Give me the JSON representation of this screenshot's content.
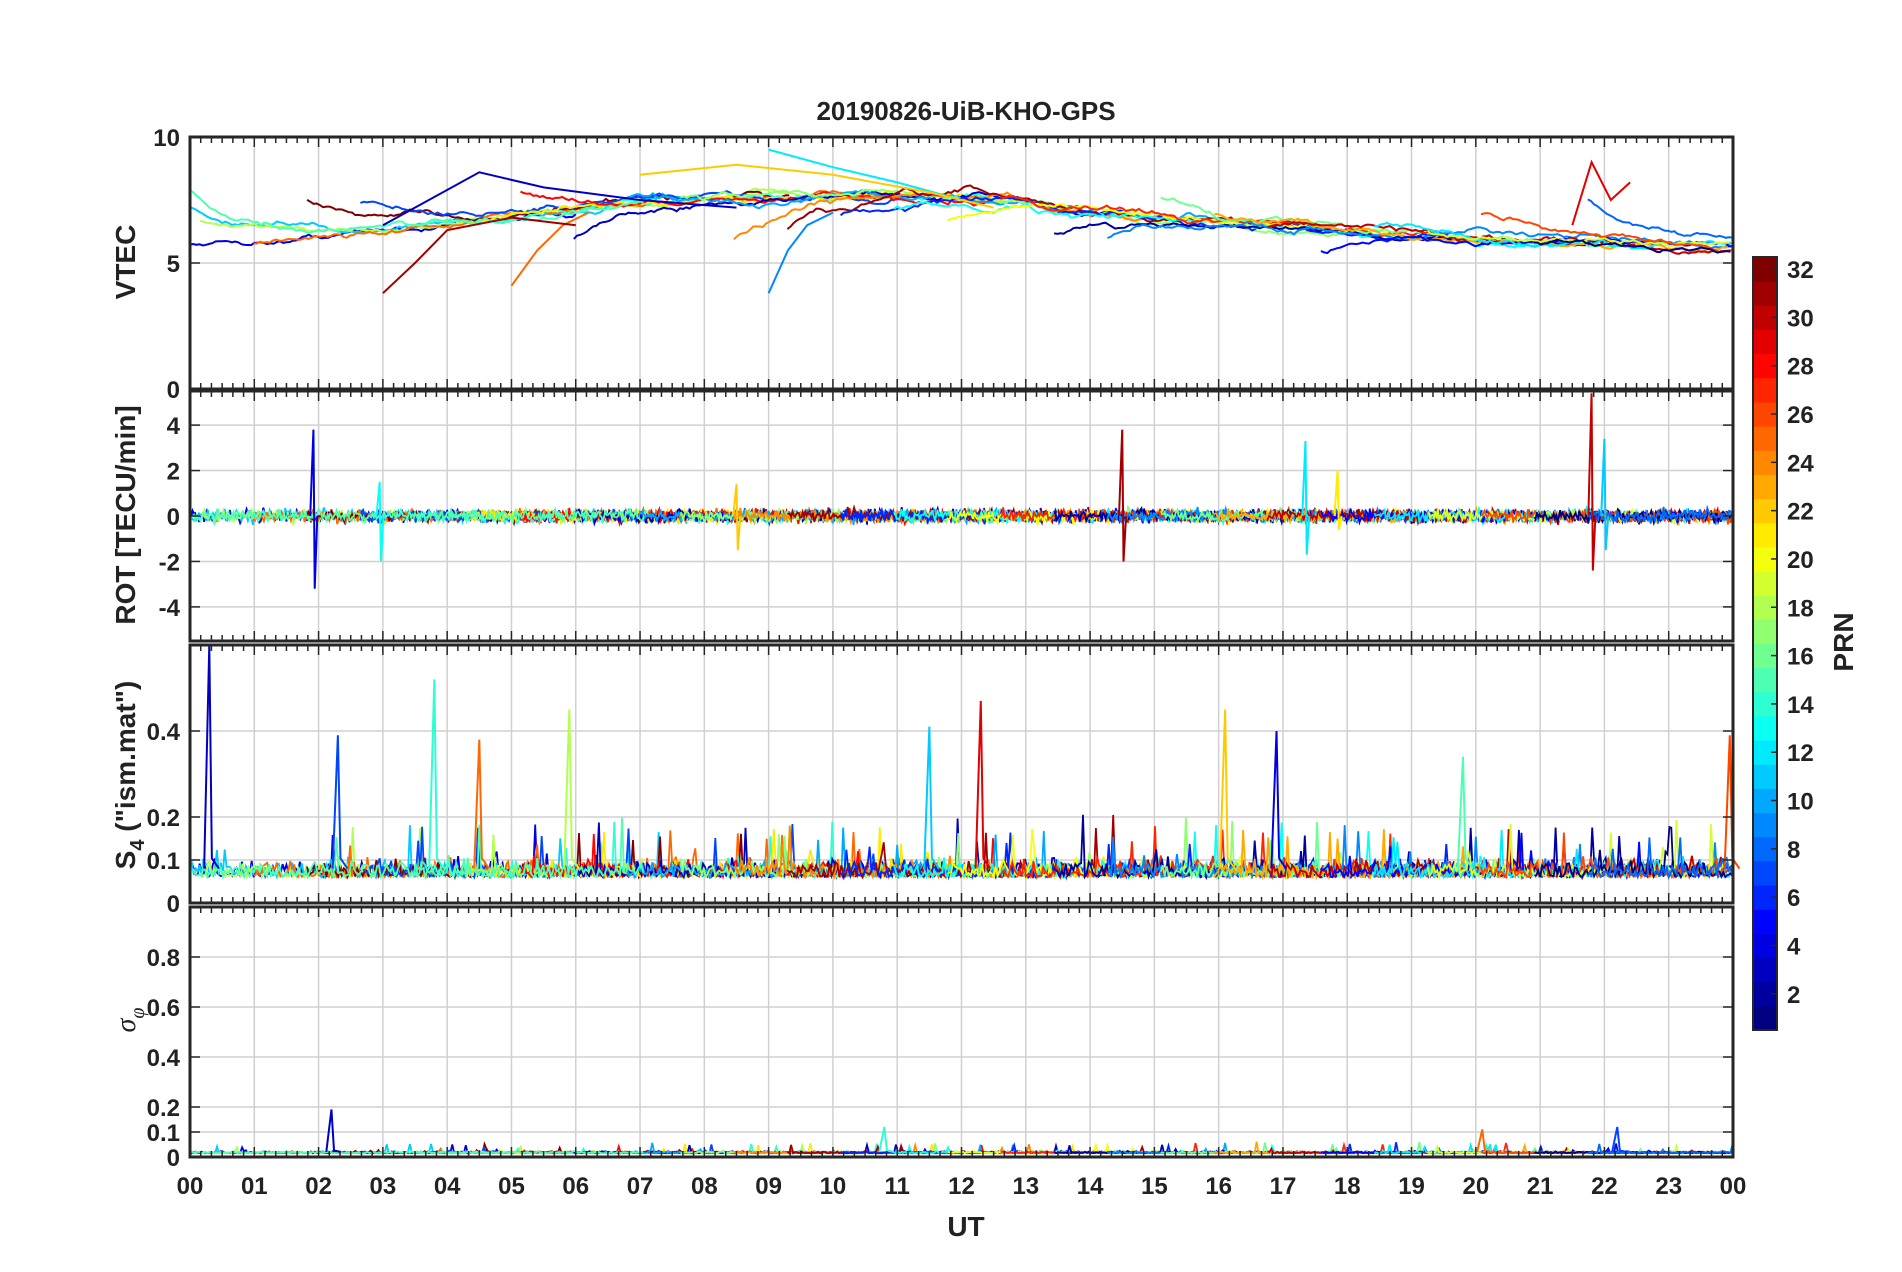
{
  "chart_data": {
    "type": "line",
    "title": "20190826-UiB-KHO-GPS",
    "xlabel": "UT",
    "x_ticks": [
      "00",
      "01",
      "02",
      "03",
      "04",
      "05",
      "06",
      "07",
      "08",
      "09",
      "10",
      "11",
      "12",
      "13",
      "14",
      "15",
      "16",
      "17",
      "18",
      "19",
      "20",
      "21",
      "22",
      "23",
      "00"
    ],
    "xlim_hours": [
      0,
      24
    ],
    "grid": true,
    "panels": [
      {
        "ylabel": "VTEC",
        "ylim": [
          0,
          10
        ],
        "y_ticks": [
          0,
          5,
          10
        ],
        "y_tick_labels": [
          "0",
          "5",
          "10"
        ],
        "description": "Vertical TEC per satellite track, mostly 5-9 TECU",
        "series_summary": [
          {
            "prn": 3,
            "x": [
              3.0,
              4.5,
              5.5,
              7.0,
              8.5
            ],
            "y": [
              6.5,
              8.6,
              8.0,
              7.5,
              7.2
            ]
          },
          {
            "prn": 9,
            "x": [
              9.0,
              9.3,
              9.6,
              10.0
            ],
            "y": [
              3.8,
              5.5,
              6.5,
              7.0
            ]
          },
          {
            "prn": 12,
            "x": [
              9.0,
              10.0,
              11.0,
              12.0
            ],
            "y": [
              9.5,
              8.8,
              8.2,
              7.5
            ]
          },
          {
            "prn": 22,
            "x": [
              7.0,
              8.5,
              10.0,
              11.5,
              12.5
            ],
            "y": [
              8.5,
              8.9,
              8.5,
              7.8,
              7.2
            ]
          },
          {
            "prn": 25,
            "x": [
              5.0,
              5.4,
              5.8,
              6.2
            ],
            "y": [
              4.1,
              5.5,
              6.5,
              7.0
            ]
          },
          {
            "prn": 29,
            "x": [
              21.5,
              21.8,
              22.1,
              22.4
            ],
            "y": [
              6.5,
              9.0,
              7.5,
              8.2
            ]
          },
          {
            "prn": 31,
            "x": [
              3.0,
              3.5,
              4.0,
              5.0,
              6.0
            ],
            "y": [
              3.8,
              5.0,
              6.3,
              6.8,
              6.5
            ]
          }
        ]
      },
      {
        "ylabel": "ROT [TECU/min]",
        "ylim": [
          -5.5,
          5.5
        ],
        "y_ticks": [
          -4,
          -2,
          0,
          2,
          4
        ],
        "y_tick_labels": [
          "-4",
          "-2",
          "0",
          "2",
          "4"
        ],
        "description": "Rate of TEC near 0 with spikes",
        "spikes": [
          {
            "hour": 1.92,
            "min": -3.2,
            "max": 3.8
          },
          {
            "hour": 2.95,
            "min": -2.0,
            "max": 1.5
          },
          {
            "hour": 8.5,
            "min": -1.5,
            "max": 1.4
          },
          {
            "hour": 14.5,
            "min": -2.0,
            "max": 3.8
          },
          {
            "hour": 17.35,
            "min": -1.7,
            "max": 3.3
          },
          {
            "hour": 17.85,
            "min": -0.6,
            "max": 2.0
          },
          {
            "hour": 21.8,
            "min": -2.4,
            "max": 5.4
          },
          {
            "hour": 22.0,
            "min": -1.5,
            "max": 3.4
          }
        ]
      },
      {
        "ylabel_main": "S",
        "ylabel_sub": "4",
        "ylabel_rest": " (\"ism.mat\")",
        "ylim": [
          0,
          0.6
        ],
        "y_ticks": [
          0,
          0.1,
          0.2,
          0.4
        ],
        "y_tick_labels": [
          "0",
          "0.1",
          "0.2",
          "0.4"
        ],
        "description": "Amplitude scintillation index, baseline ~0.05-0.15 with peaks",
        "peaks": [
          {
            "hour": 0.3,
            "value": 0.6
          },
          {
            "hour": 3.8,
            "value": 0.52
          },
          {
            "hour": 4.5,
            "value": 0.38
          },
          {
            "hour": 2.3,
            "value": 0.39
          },
          {
            "hour": 5.9,
            "value": 0.45
          },
          {
            "hour": 12.3,
            "value": 0.47
          },
          {
            "hour": 11.5,
            "value": 0.41
          },
          {
            "hour": 16.1,
            "value": 0.45
          },
          {
            "hour": 16.9,
            "value": 0.4
          },
          {
            "hour": 19.8,
            "value": 0.34
          },
          {
            "hour": 23.95,
            "value": 0.39
          }
        ]
      },
      {
        "ylabel_main": "σ",
        "ylabel_sub": "φ",
        "ylim": [
          0,
          1
        ],
        "y_ticks": [
          0,
          0.1,
          0.2,
          0.4,
          0.6,
          0.8
        ],
        "y_tick_labels": [
          "0",
          "0.1",
          "0.2",
          "0.4",
          "0.6",
          "0.8"
        ],
        "description": "Phase scintillation index near 0",
        "peaks": [
          {
            "hour": 2.2,
            "value": 0.19
          },
          {
            "hour": 10.8,
            "value": 0.12
          },
          {
            "hour": 20.1,
            "value": 0.11
          },
          {
            "hour": 22.2,
            "value": 0.12
          }
        ]
      }
    ],
    "colorbar": {
      "label": "PRN",
      "range": [
        1,
        32
      ],
      "ticks": [
        2,
        4,
        6,
        8,
        10,
        12,
        14,
        16,
        18,
        20,
        22,
        24,
        26,
        28,
        30,
        32
      ],
      "colormap": "jet"
    }
  }
}
